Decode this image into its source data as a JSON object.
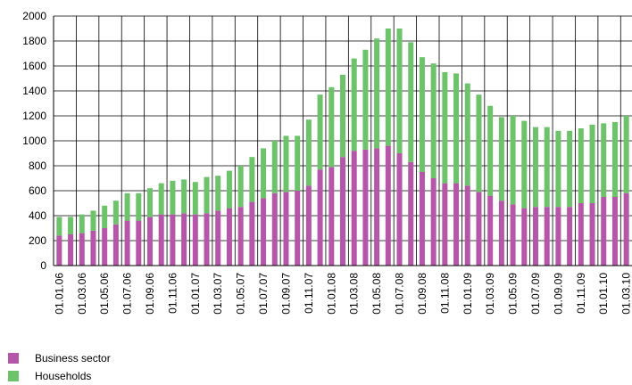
{
  "chart_data": {
    "type": "bar",
    "stacked": true,
    "title": "",
    "xlabel": "",
    "ylabel": "",
    "ylim": [
      0,
      2000
    ],
    "yticks": [
      0,
      200,
      400,
      600,
      800,
      1000,
      1200,
      1400,
      1600,
      1800,
      2000
    ],
    "grid": "vertical lines between bars and horizontal lines at each y tick",
    "legend_position": "bottom-left",
    "x_tick_labels_rotated": true,
    "categories": [
      "01.01.06",
      "01.02.06",
      "01.03.06",
      "01.04.06",
      "01.05.06",
      "01.06.06",
      "01.07.06",
      "01.08.06",
      "01.09.06",
      "01.10.06",
      "01.11.06",
      "01.12.06",
      "01.01.07",
      "01.02.07",
      "01.03.07",
      "01.04.07",
      "01.05.07",
      "01.06.07",
      "01.07.07",
      "01.08.07",
      "01.09.07",
      "01.10.07",
      "01.11.07",
      "01.12.07",
      "01.01.08",
      "01.02.08",
      "01.03.08",
      "01.04.08",
      "01.05.08",
      "01.06.08",
      "01.07.08",
      "01.08.08",
      "01.09.08",
      "01.10.08",
      "01.11.08",
      "01.12.08",
      "01.01.09",
      "01.02.09",
      "01.03.09",
      "01.04.09",
      "01.05.09",
      "01.06.09",
      "01.07.09",
      "01.08.09",
      "01.09.09",
      "01.10.09",
      "01.11.09",
      "01.12.09",
      "01.01.10",
      "01.02.10",
      "01.03.10"
    ],
    "shown_tick_labels": [
      "01.01.06",
      "01.03.06",
      "01.05.06",
      "01.07.06",
      "01.09.06",
      "01.11.06",
      "01.01.07",
      "01.03.07",
      "01.05.07",
      "01.07.07",
      "01.09.07",
      "01.11.07",
      "01.01.08",
      "01.03.08",
      "01.05.08",
      "01.07.08",
      "01.09.08",
      "01.11.08",
      "01.01.09",
      "01.03.09",
      "01.05.09",
      "01.07.09",
      "01.09.09",
      "01.11.09",
      "01.01.10",
      "01.03.10"
    ],
    "series": [
      {
        "name": "Business sector",
        "color": "#b556a8",
        "values": [
          240,
          250,
          260,
          280,
          300,
          330,
          360,
          360,
          390,
          410,
          410,
          420,
          410,
          420,
          440,
          460,
          470,
          510,
          540,
          580,
          590,
          600,
          640,
          770,
          790,
          870,
          920,
          930,
          940,
          960,
          900,
          830,
          750,
          700,
          660,
          660,
          640,
          590,
          560,
          520,
          490,
          460,
          470,
          470,
          470,
          470,
          500,
          500,
          550,
          550,
          580
        ]
      },
      {
        "name": "Households",
        "color": "#6cc36a",
        "values": [
          150,
          140,
          150,
          160,
          180,
          190,
          220,
          220,
          230,
          250,
          270,
          270,
          260,
          290,
          280,
          300,
          330,
          360,
          400,
          420,
          450,
          440,
          530,
          600,
          640,
          660,
          740,
          800,
          880,
          940,
          1000,
          960,
          920,
          920,
          890,
          880,
          820,
          780,
          720,
          670,
          710,
          700,
          640,
          640,
          610,
          610,
          600,
          630,
          590,
          600,
          620
        ]
      }
    ]
  },
  "legend": {
    "items": [
      {
        "label": "Business sector",
        "color": "#b556a8"
      },
      {
        "label": "Households",
        "color": "#6cc36a"
      }
    ]
  }
}
